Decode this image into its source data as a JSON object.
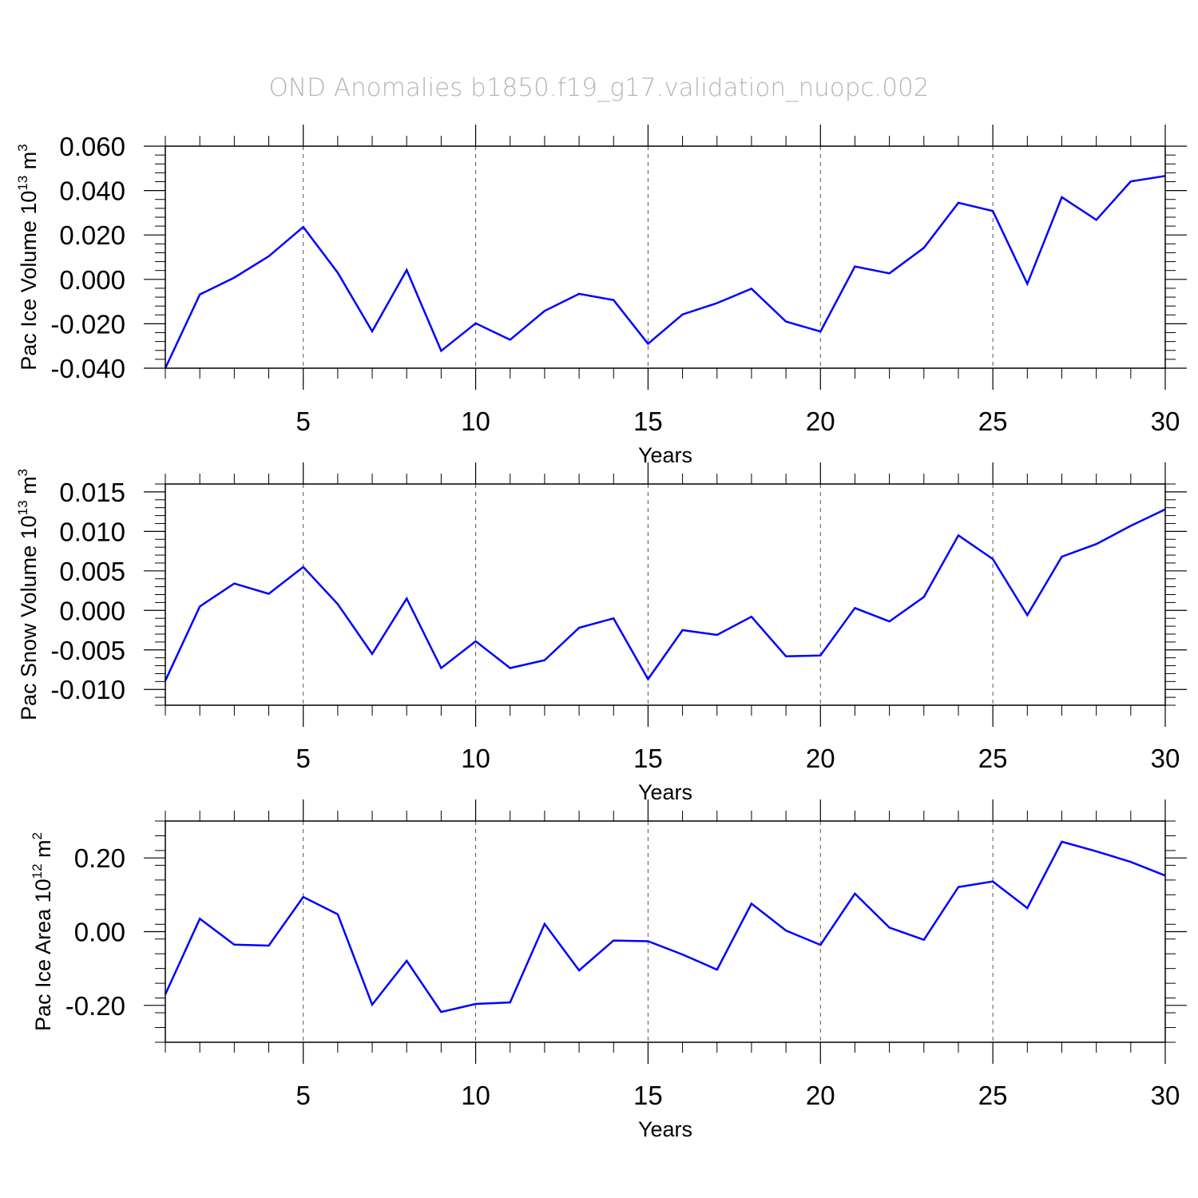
{
  "title": "OND Anomalies b1850.f19_g17.validation_nuopc.002",
  "colors": {
    "line": "#0000ff",
    "axis": "#000000",
    "grid": "#555555",
    "title": "#b5b5b5"
  },
  "chart_data": [
    {
      "type": "line",
      "title": "OND Anomalies b1850.f19_g17.validation_nuopc.002",
      "xlabel": "Years",
      "ylabel": {
        "prefix": "Pac Ice Volume 10",
        "exponent": "13",
        "unit": " m",
        "unit_exponent": "3"
      },
      "xlim": [
        1,
        30
      ],
      "ylim": [
        -0.04,
        0.06
      ],
      "xticks": [
        5,
        10,
        15,
        20,
        25,
        30
      ],
      "xtick_labels": [
        "5",
        "10",
        "15",
        "20",
        "25",
        "30"
      ],
      "yticks": [
        -0.04,
        -0.02,
        0.0,
        0.02,
        0.04,
        0.06
      ],
      "ytick_labels": [
        "-0.040",
        "-0.020",
        "0.000",
        "0.020",
        "0.040",
        "0.060"
      ],
      "grid": "vertical dashed at labeled x ticks",
      "series": [
        {
          "name": "Pac Ice Volume",
          "x": [
            1,
            2,
            3,
            4,
            5,
            6,
            7,
            8,
            9,
            10,
            11,
            12,
            13,
            14,
            15,
            16,
            17,
            18,
            19,
            20,
            21,
            22,
            23,
            24,
            25,
            26,
            27,
            28,
            29,
            30
          ],
          "values": [
            -0.04,
            -0.0068,
            0.0008,
            0.0104,
            0.0236,
            0.003,
            -0.0234,
            0.0042,
            -0.0322,
            -0.0198,
            -0.0272,
            -0.0142,
            -0.0065,
            -0.0093,
            -0.029,
            -0.0158,
            -0.0107,
            -0.0042,
            -0.019,
            -0.0235,
            0.0058,
            0.0027,
            0.0142,
            0.0345,
            0.0308,
            -0.002,
            0.037,
            0.0268,
            0.0441,
            0.0466
          ]
        }
      ]
    },
    {
      "type": "line",
      "xlabel": "Years",
      "ylabel": {
        "prefix": "Pac Snow Volume 10",
        "exponent": "13",
        "unit": " m",
        "unit_exponent": "3"
      },
      "xlim": [
        1,
        30
      ],
      "ylim": [
        -0.012,
        0.016
      ],
      "xticks": [
        5,
        10,
        15,
        20,
        25,
        30
      ],
      "xtick_labels": [
        "5",
        "10",
        "15",
        "20",
        "25",
        "30"
      ],
      "yticks": [
        -0.01,
        -0.005,
        0.0,
        0.005,
        0.01,
        0.015
      ],
      "ytick_labels": [
        "-0.010",
        "-0.005",
        "0.000",
        "0.005",
        "0.010",
        "0.015"
      ],
      "grid": "vertical dashed at labeled x ticks",
      "series": [
        {
          "name": "Pac Snow Volume",
          "x": [
            1,
            2,
            3,
            4,
            5,
            6,
            7,
            8,
            9,
            10,
            11,
            12,
            13,
            14,
            15,
            16,
            17,
            18,
            19,
            20,
            21,
            22,
            23,
            24,
            25,
            26,
            27,
            28,
            29,
            30
          ],
          "values": [
            -0.0089,
            0.0005,
            0.0034,
            0.0021,
            0.0055,
            0.0008,
            -0.0055,
            0.0015,
            -0.0073,
            -0.0039,
            -0.0073,
            -0.0063,
            -0.0022,
            -0.001,
            -0.0087,
            -0.0025,
            -0.0031,
            -0.0008,
            -0.0058,
            -0.0057,
            0.0003,
            -0.0014,
            0.0017,
            0.0095,
            0.0065,
            -0.0006,
            0.0068,
            0.0084,
            0.0107,
            0.0128
          ]
        }
      ]
    },
    {
      "type": "line",
      "xlabel": "Years",
      "ylabel": {
        "prefix": "Pac Ice Area 10",
        "exponent": "12",
        "unit": " m",
        "unit_exponent": "2"
      },
      "xlim": [
        1,
        30
      ],
      "ylim": [
        -0.3,
        0.3
      ],
      "xticks": [
        5,
        10,
        15,
        20,
        25,
        30
      ],
      "xtick_labels": [
        "5",
        "10",
        "15",
        "20",
        "25",
        "30"
      ],
      "yticks": [
        -0.2,
        0.0,
        0.2
      ],
      "ytick_labels": [
        "-0.20",
        "0.00",
        "0.20"
      ],
      "grid": "vertical dashed at labeled x ticks",
      "series": [
        {
          "name": "Pac Ice Area",
          "x": [
            1,
            2,
            3,
            4,
            5,
            6,
            7,
            8,
            9,
            10,
            11,
            12,
            13,
            14,
            15,
            16,
            17,
            18,
            19,
            20,
            21,
            22,
            23,
            24,
            25,
            26,
            27,
            28,
            29,
            30
          ],
          "values": [
            -0.17,
            0.035,
            -0.035,
            -0.038,
            0.094,
            0.047,
            -0.198,
            -0.079,
            -0.218,
            -0.196,
            -0.192,
            0.021,
            -0.105,
            -0.024,
            -0.026,
            -0.062,
            -0.103,
            0.076,
            0.003,
            -0.036,
            0.103,
            0.011,
            -0.022,
            0.121,
            0.136,
            0.064,
            0.244,
            0.218,
            0.189,
            0.152
          ]
        }
      ]
    }
  ]
}
